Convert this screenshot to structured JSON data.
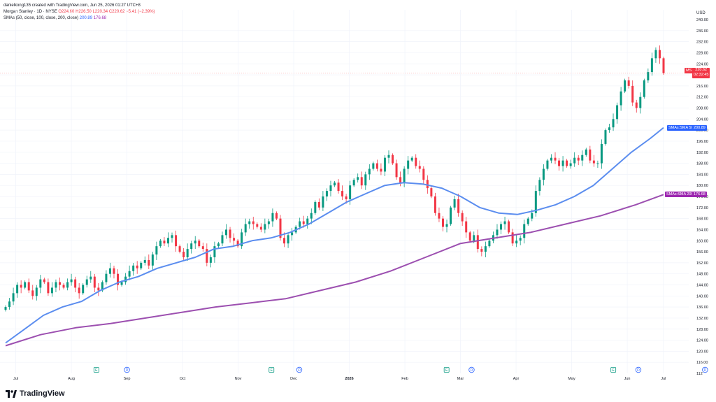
{
  "header": {
    "created_by": "danielkong135 created with TradingView.com, Jun 25, 2026 01:27 UTC+8"
  },
  "legend": {
    "symbol": "Morgan Stanley · 1D · NYSE",
    "open": "O224.60",
    "high": "H226.50",
    "low": "L220.34",
    "close": "C220.62",
    "change": "−5.41 (−2.39%)"
  },
  "sma_legend": {
    "label": "SMAs (50, close, 100, close, 200, close)",
    "v50": "200.89",
    "v200": "176.68"
  },
  "currency": "USD",
  "price_tags": {
    "last_label": "MS",
    "last_price": "220.62",
    "countdown": "02:32:45",
    "sma50_label": "SMAs:SMA 50",
    "sma50_value": "200.89",
    "sma200_label": "SMAs:SMA 200",
    "sma200_value": "176.68"
  },
  "brand": "TradingView",
  "colors": {
    "up": "#089981",
    "down": "#f23645",
    "sma50": "#5b8def",
    "sma200": "#9c4fb0",
    "grid": "#f0f3fa"
  },
  "chart_data": {
    "type": "candlestick",
    "ylim": [
      112,
      240
    ],
    "yticks": [
      116,
      120,
      124,
      128,
      132,
      136,
      140,
      144,
      148,
      152,
      156,
      160,
      164,
      168,
      172,
      176,
      180,
      184,
      188,
      192,
      196,
      200,
      204,
      208,
      212,
      216,
      220,
      224,
      228,
      232,
      236
    ],
    "y_bottom_label": "112",
    "y_top_label": "240.00",
    "x_labels": [
      "Jul",
      "Aug",
      "Sep",
      "Oct",
      "Nov",
      "Dec",
      "2026",
      "Feb",
      "Mar",
      "Apr",
      "May",
      "Jun",
      "Jul"
    ],
    "x_label_positions": [
      0.9,
      1.9,
      2.9,
      3.9,
      4.9,
      5.9,
      6.9,
      7.9,
      8.9,
      9.9,
      10.9,
      11.9,
      12.55
    ],
    "event_markers": [
      {
        "kind": "E",
        "month": 1.45
      },
      {
        "kind": "D",
        "month": 2.0
      },
      {
        "kind": "E",
        "month": 4.6
      },
      {
        "kind": "D",
        "month": 5.1
      },
      {
        "kind": "E",
        "month": 7.75
      },
      {
        "kind": "D",
        "month": 8.2
      },
      {
        "kind": "E",
        "month": 10.75
      },
      {
        "kind": "D",
        "month": 11.2
      },
      {
        "kind": "D",
        "month": 12.4
      }
    ],
    "closes": [
      136,
      138,
      141,
      144,
      143,
      145,
      142,
      140,
      143,
      146,
      145,
      141,
      143,
      145,
      144,
      143,
      145,
      146,
      143,
      141,
      144,
      146,
      147,
      143,
      142,
      145,
      148,
      150,
      148,
      144,
      145,
      147,
      149,
      151,
      150,
      152,
      153,
      151,
      155,
      158,
      160,
      159,
      161,
      162,
      158,
      156,
      154,
      157,
      159,
      160,
      158,
      157,
      152,
      154,
      158,
      159,
      162,
      164,
      161,
      160,
      158,
      163,
      166,
      167,
      166,
      165,
      164,
      166,
      167,
      170,
      168,
      161,
      159,
      162,
      163,
      165,
      167,
      166,
      168,
      170,
      174,
      172,
      176,
      178,
      180,
      181,
      178,
      176,
      175,
      180,
      182,
      183,
      180,
      184,
      186,
      188,
      186,
      185,
      190,
      191,
      188,
      183,
      181,
      186,
      189,
      190,
      187,
      186,
      182,
      179,
      176,
      170,
      168,
      165,
      166,
      172,
      175,
      170,
      167,
      163,
      160,
      162,
      157,
      156,
      158,
      160,
      162,
      164,
      166,
      167,
      163,
      159,
      160,
      161,
      166,
      168,
      170,
      178,
      182,
      186,
      189,
      190,
      189,
      187,
      189,
      187,
      188,
      190,
      189,
      191,
      193,
      189,
      188,
      188,
      195,
      200,
      201,
      204,
      209,
      214,
      218,
      216,
      210,
      208,
      212,
      218,
      221,
      226,
      229,
      226,
      220.62
    ],
    "sma50": [
      [
        0,
        123
      ],
      [
        10,
        128
      ],
      [
        20,
        133
      ],
      [
        30,
        136
      ],
      [
        40,
        138
      ],
      [
        50,
        142
      ],
      [
        60,
        145
      ],
      [
        70,
        147
      ],
      [
        80,
        150
      ],
      [
        90,
        152
      ],
      [
        100,
        154
      ],
      [
        110,
        157
      ],
      [
        120,
        158
      ],
      [
        130,
        160
      ],
      [
        140,
        161
      ],
      [
        150,
        163
      ],
      [
        160,
        166
      ],
      [
        170,
        170
      ],
      [
        180,
        174
      ],
      [
        190,
        177
      ],
      [
        200,
        180
      ],
      [
        210,
        181
      ],
      [
        220,
        180.5
      ],
      [
        230,
        179
      ],
      [
        240,
        176
      ],
      [
        250,
        172
      ],
      [
        260,
        170
      ],
      [
        270,
        169.5
      ],
      [
        280,
        171
      ],
      [
        290,
        173
      ],
      [
        300,
        176
      ],
      [
        310,
        180
      ],
      [
        320,
        186
      ],
      [
        330,
        192
      ],
      [
        340,
        197
      ],
      [
        347,
        200.89
      ]
    ],
    "sma200": [
      [
        0,
        122
      ],
      [
        25,
        126
      ],
      [
        50,
        128.5
      ],
      [
        75,
        130
      ],
      [
        100,
        132
      ],
      [
        125,
        134
      ],
      [
        150,
        136
      ],
      [
        175,
        137.5
      ],
      [
        200,
        139
      ],
      [
        225,
        142
      ],
      [
        250,
        145
      ],
      [
        275,
        149
      ],
      [
        300,
        154
      ],
      [
        325,
        159
      ],
      [
        350,
        161
      ],
      [
        375,
        163
      ],
      [
        400,
        166
      ],
      [
        425,
        169
      ],
      [
        450,
        173
      ],
      [
        470,
        176.68
      ]
    ]
  }
}
